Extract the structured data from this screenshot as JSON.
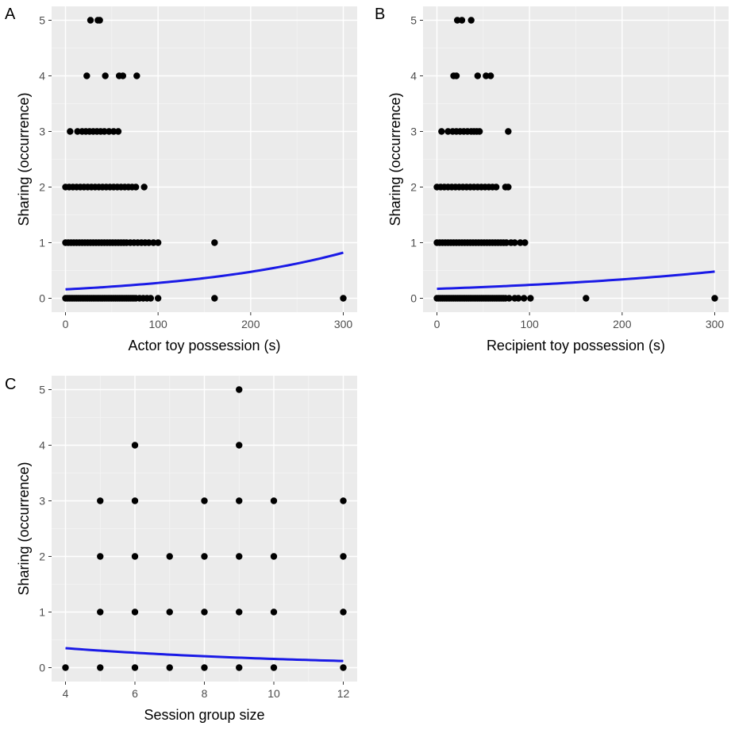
{
  "colors": {
    "panel_bg": "#ebebeb",
    "grid_major": "#ffffff",
    "grid_minor": "#f5f5f5",
    "point": "#000000",
    "fit_line": "#1a1ae6",
    "tick_text": "#4d4d4d"
  },
  "chart_data": [
    {
      "type": "scatter",
      "panel_label": "A",
      "xlabel": "Actor toy possession (s)",
      "ylabel": "Sharing (occurrence)",
      "xlim": [
        -15,
        315
      ],
      "ylim": [
        -0.25,
        5.25
      ],
      "xticks": [
        0,
        100,
        200,
        300
      ],
      "yticks": [
        0,
        1,
        2,
        3,
        4,
        5
      ],
      "grid": true,
      "points": [
        [
          0,
          0
        ],
        [
          2,
          0
        ],
        [
          4,
          0
        ],
        [
          6,
          0
        ],
        [
          8,
          0
        ],
        [
          10,
          0
        ],
        [
          12,
          0
        ],
        [
          14,
          0
        ],
        [
          16,
          0
        ],
        [
          18,
          0
        ],
        [
          20,
          0
        ],
        [
          22,
          0
        ],
        [
          24,
          0
        ],
        [
          26,
          0
        ],
        [
          28,
          0
        ],
        [
          30,
          0
        ],
        [
          32,
          0
        ],
        [
          34,
          0
        ],
        [
          36,
          0
        ],
        [
          38,
          0
        ],
        [
          40,
          0
        ],
        [
          42,
          0
        ],
        [
          44,
          0
        ],
        [
          46,
          0
        ],
        [
          48,
          0
        ],
        [
          50,
          0
        ],
        [
          52,
          0
        ],
        [
          54,
          0
        ],
        [
          56,
          0
        ],
        [
          58,
          0
        ],
        [
          60,
          0
        ],
        [
          62,
          0
        ],
        [
          64,
          0
        ],
        [
          66,
          0
        ],
        [
          68,
          0
        ],
        [
          70,
          0
        ],
        [
          72,
          0
        ],
        [
          74,
          0
        ],
        [
          76,
          0
        ],
        [
          80,
          0
        ],
        [
          84,
          0
        ],
        [
          88,
          0
        ],
        [
          92,
          0
        ],
        [
          100,
          0
        ],
        [
          161,
          0
        ],
        [
          300,
          0
        ],
        [
          0,
          1
        ],
        [
          3,
          1
        ],
        [
          6,
          1
        ],
        [
          9,
          1
        ],
        [
          12,
          1
        ],
        [
          15,
          1
        ],
        [
          18,
          1
        ],
        [
          21,
          1
        ],
        [
          24,
          1
        ],
        [
          27,
          1
        ],
        [
          30,
          1
        ],
        [
          33,
          1
        ],
        [
          36,
          1
        ],
        [
          39,
          1
        ],
        [
          42,
          1
        ],
        [
          45,
          1
        ],
        [
          48,
          1
        ],
        [
          51,
          1
        ],
        [
          54,
          1
        ],
        [
          57,
          1
        ],
        [
          60,
          1
        ],
        [
          63,
          1
        ],
        [
          66,
          1
        ],
        [
          70,
          1
        ],
        [
          74,
          1
        ],
        [
          78,
          1
        ],
        [
          82,
          1
        ],
        [
          86,
          1
        ],
        [
          90,
          1
        ],
        [
          95,
          1
        ],
        [
          100,
          1
        ],
        [
          161,
          1
        ],
        [
          0,
          2
        ],
        [
          4,
          2
        ],
        [
          8,
          2
        ],
        [
          12,
          2
        ],
        [
          16,
          2
        ],
        [
          20,
          2
        ],
        [
          24,
          2
        ],
        [
          28,
          2
        ],
        [
          32,
          2
        ],
        [
          36,
          2
        ],
        [
          40,
          2
        ],
        [
          44,
          2
        ],
        [
          48,
          2
        ],
        [
          52,
          2
        ],
        [
          56,
          2
        ],
        [
          60,
          2
        ],
        [
          64,
          2
        ],
        [
          68,
          2
        ],
        [
          72,
          2
        ],
        [
          76,
          2
        ],
        [
          85,
          2
        ],
        [
          5,
          3
        ],
        [
          13,
          3
        ],
        [
          18,
          3
        ],
        [
          22,
          3
        ],
        [
          26,
          3
        ],
        [
          30,
          3
        ],
        [
          34,
          3
        ],
        [
          38,
          3
        ],
        [
          42,
          3
        ],
        [
          47,
          3
        ],
        [
          52,
          3
        ],
        [
          57,
          3
        ],
        [
          23,
          4
        ],
        [
          43,
          4
        ],
        [
          58,
          4
        ],
        [
          62,
          4
        ],
        [
          77,
          4
        ],
        [
          27,
          5
        ],
        [
          35,
          5
        ],
        [
          37,
          5
        ]
      ],
      "fit_line": {
        "x": [
          0,
          300
        ],
        "y": [
          0.16,
          0.82
        ],
        "model": "exponential"
      }
    },
    {
      "type": "scatter",
      "panel_label": "B",
      "xlabel": "Recipient toy possession (s)",
      "ylabel": "Sharing (occurrence)",
      "xlim": [
        -15,
        315
      ],
      "ylim": [
        -0.25,
        5.25
      ],
      "xticks": [
        0,
        100,
        200,
        300
      ],
      "yticks": [
        0,
        1,
        2,
        3,
        4,
        5
      ],
      "grid": true,
      "points": [
        [
          0,
          0
        ],
        [
          2,
          0
        ],
        [
          4,
          0
        ],
        [
          6,
          0
        ],
        [
          8,
          0
        ],
        [
          10,
          0
        ],
        [
          12,
          0
        ],
        [
          14,
          0
        ],
        [
          16,
          0
        ],
        [
          18,
          0
        ],
        [
          20,
          0
        ],
        [
          22,
          0
        ],
        [
          24,
          0
        ],
        [
          26,
          0
        ],
        [
          28,
          0
        ],
        [
          30,
          0
        ],
        [
          32,
          0
        ],
        [
          34,
          0
        ],
        [
          36,
          0
        ],
        [
          38,
          0
        ],
        [
          40,
          0
        ],
        [
          42,
          0
        ],
        [
          44,
          0
        ],
        [
          46,
          0
        ],
        [
          48,
          0
        ],
        [
          50,
          0
        ],
        [
          52,
          0
        ],
        [
          54,
          0
        ],
        [
          56,
          0
        ],
        [
          58,
          0
        ],
        [
          60,
          0
        ],
        [
          62,
          0
        ],
        [
          64,
          0
        ],
        [
          66,
          0
        ],
        [
          68,
          0
        ],
        [
          70,
          0
        ],
        [
          72,
          0
        ],
        [
          74,
          0
        ],
        [
          78,
          0
        ],
        [
          84,
          0
        ],
        [
          88,
          0
        ],
        [
          94,
          0
        ],
        [
          101,
          0
        ],
        [
          161,
          0
        ],
        [
          300,
          0
        ],
        [
          0,
          1
        ],
        [
          3,
          1
        ],
        [
          6,
          1
        ],
        [
          9,
          1
        ],
        [
          12,
          1
        ],
        [
          15,
          1
        ],
        [
          18,
          1
        ],
        [
          21,
          1
        ],
        [
          24,
          1
        ],
        [
          27,
          1
        ],
        [
          30,
          1
        ],
        [
          33,
          1
        ],
        [
          36,
          1
        ],
        [
          39,
          1
        ],
        [
          42,
          1
        ],
        [
          45,
          1
        ],
        [
          48,
          1
        ],
        [
          51,
          1
        ],
        [
          54,
          1
        ],
        [
          57,
          1
        ],
        [
          60,
          1
        ],
        [
          63,
          1
        ],
        [
          66,
          1
        ],
        [
          69,
          1
        ],
        [
          72,
          1
        ],
        [
          75,
          1
        ],
        [
          80,
          1
        ],
        [
          84,
          1
        ],
        [
          90,
          1
        ],
        [
          95,
          1
        ],
        [
          0,
          2
        ],
        [
          4,
          2
        ],
        [
          8,
          2
        ],
        [
          12,
          2
        ],
        [
          16,
          2
        ],
        [
          20,
          2
        ],
        [
          24,
          2
        ],
        [
          28,
          2
        ],
        [
          32,
          2
        ],
        [
          36,
          2
        ],
        [
          40,
          2
        ],
        [
          44,
          2
        ],
        [
          48,
          2
        ],
        [
          52,
          2
        ],
        [
          56,
          2
        ],
        [
          60,
          2
        ],
        [
          64,
          2
        ],
        [
          74,
          2
        ],
        [
          77,
          2
        ],
        [
          5,
          3
        ],
        [
          12,
          3
        ],
        [
          17,
          3
        ],
        [
          21,
          3
        ],
        [
          25,
          3
        ],
        [
          29,
          3
        ],
        [
          33,
          3
        ],
        [
          37,
          3
        ],
        [
          40,
          3
        ],
        [
          43,
          3
        ],
        [
          46,
          3
        ],
        [
          77,
          3
        ],
        [
          18,
          4
        ],
        [
          21,
          4
        ],
        [
          44,
          4
        ],
        [
          53,
          4
        ],
        [
          58,
          4
        ],
        [
          22,
          5
        ],
        [
          27,
          5
        ],
        [
          37,
          5
        ]
      ],
      "fit_line": {
        "x": [
          0,
          300
        ],
        "y": [
          0.17,
          0.48
        ],
        "model": "exponential"
      }
    },
    {
      "type": "scatter",
      "panel_label": "C",
      "xlabel": "Session group size",
      "ylabel": "Sharing (occurrence)",
      "xlim": [
        3.6,
        12.4
      ],
      "ylim": [
        -0.25,
        5.25
      ],
      "xticks": [
        4,
        6,
        8,
        10,
        12
      ],
      "yticks": [
        0,
        1,
        2,
        3,
        4,
        5
      ],
      "grid": true,
      "points": [
        [
          4,
          0
        ],
        [
          5,
          0
        ],
        [
          6,
          0
        ],
        [
          7,
          0
        ],
        [
          8,
          0
        ],
        [
          9,
          0
        ],
        [
          10,
          0
        ],
        [
          12,
          0
        ],
        [
          5,
          1
        ],
        [
          6,
          1
        ],
        [
          7,
          1
        ],
        [
          8,
          1
        ],
        [
          9,
          1
        ],
        [
          10,
          1
        ],
        [
          12,
          1
        ],
        [
          5,
          2
        ],
        [
          6,
          2
        ],
        [
          7,
          2
        ],
        [
          8,
          2
        ],
        [
          9,
          2
        ],
        [
          10,
          2
        ],
        [
          12,
          2
        ],
        [
          5,
          3
        ],
        [
          6,
          3
        ],
        [
          8,
          3
        ],
        [
          9,
          3
        ],
        [
          10,
          3
        ],
        [
          12,
          3
        ],
        [
          6,
          4
        ],
        [
          9,
          4
        ],
        [
          9,
          5
        ]
      ],
      "fit_line": {
        "x": [
          4,
          12
        ],
        "y": [
          0.35,
          0.12
        ],
        "model": "exponential"
      }
    }
  ]
}
